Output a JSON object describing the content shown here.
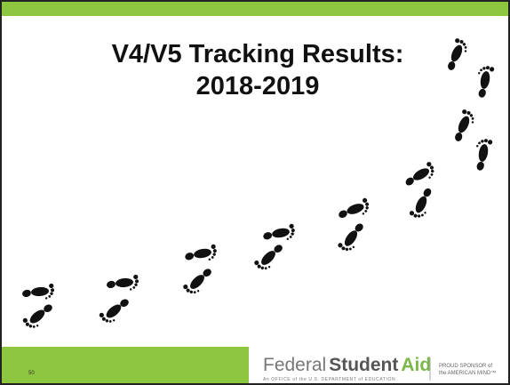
{
  "slide": {
    "title_lines": [
      "V4/V5 Tracking Results:",
      "2018-2019"
    ],
    "page_number": "50"
  },
  "footer": {
    "logo": {
      "word1": "Federal",
      "word2": "Student",
      "word3": "Aid",
      "tagline": "An OFFICE of the U.S. DEPARTMENT of EDUCATION"
    },
    "sponsor_lines": [
      "PROUD SPONSOR of",
      "the AMERICAN MIND™"
    ]
  }
}
